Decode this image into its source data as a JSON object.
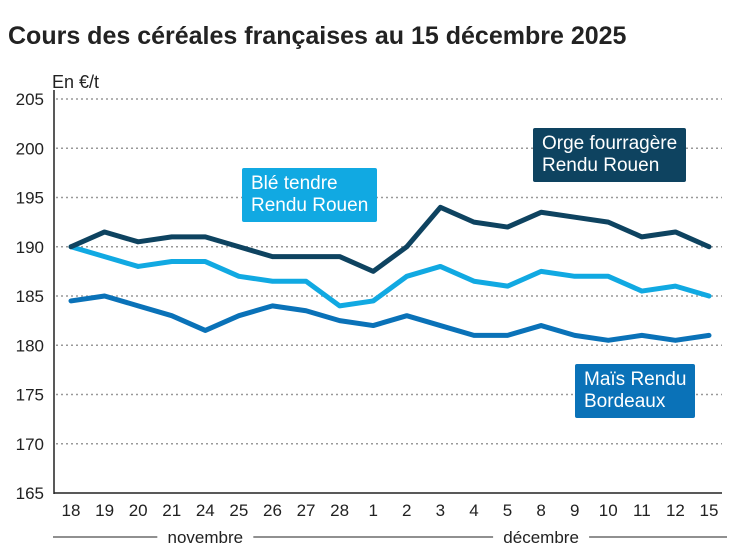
{
  "chart_data": {
    "type": "line",
    "title": "Cours des céréales françaises au 15 décembre 2025",
    "ylabel": "En €/t",
    "ylim": [
      165,
      205
    ],
    "yticks": [
      165,
      170,
      175,
      180,
      185,
      190,
      195,
      200,
      205
    ],
    "grid": true,
    "categories": [
      "18",
      "19",
      "20",
      "21",
      "24",
      "25",
      "26",
      "27",
      "28",
      "1",
      "2",
      "3",
      "4",
      "5",
      "8",
      "9",
      "10",
      "11",
      "12",
      "15"
    ],
    "month_groups": [
      {
        "label": "novembre",
        "count": 9
      },
      {
        "label": "décembre",
        "count": 11
      }
    ],
    "series": [
      {
        "name": "Orge fourragère Rendu Rouen",
        "color": "#0e4360",
        "values": [
          190,
          191.5,
          190.5,
          191,
          191,
          190,
          189,
          189,
          189,
          187.5,
          190,
          194,
          192.5,
          192,
          193.5,
          193,
          192.5,
          191,
          191.5,
          190
        ]
      },
      {
        "name": "Blé tendre Rendu Rouen",
        "color": "#11a9e2",
        "values": [
          190,
          189,
          188,
          188.5,
          188.5,
          187,
          186.5,
          186.5,
          184,
          184.5,
          187,
          188,
          186.5,
          186,
          187.5,
          187,
          187,
          185.5,
          186,
          185
        ]
      },
      {
        "name": "Maïs Rendu Bordeaux",
        "color": "#0a72b8",
        "values": [
          184.5,
          185,
          184,
          183,
          181.5,
          183,
          184,
          183.5,
          182.5,
          182,
          183,
          182,
          181,
          181,
          182,
          181,
          180.5,
          181,
          180.5,
          181
        ]
      }
    ]
  }
}
